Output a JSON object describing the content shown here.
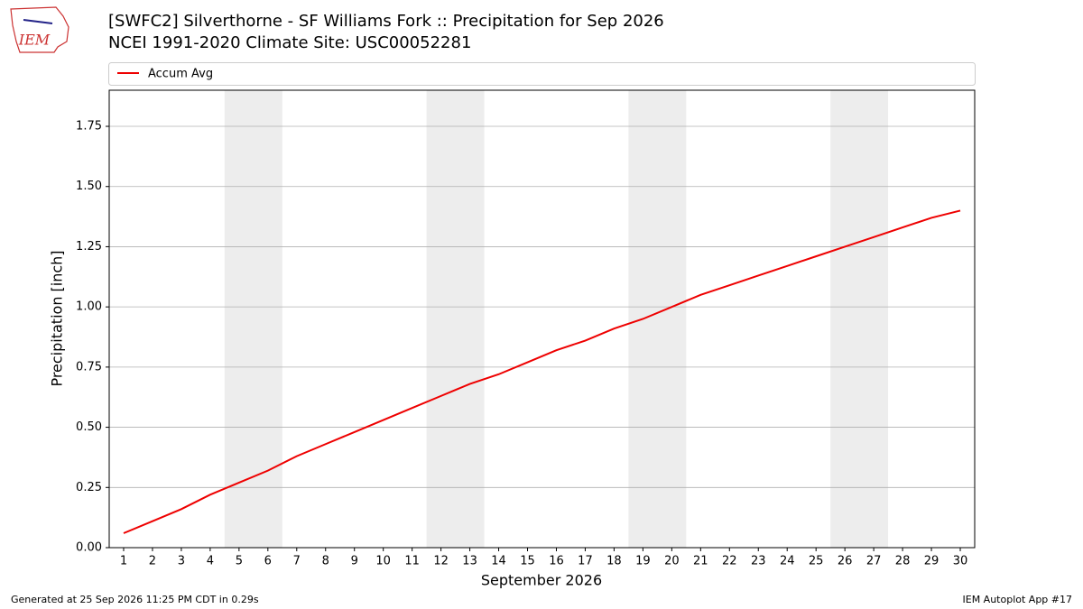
{
  "chart_data": {
    "type": "line",
    "title": "[SWFC2] Silverthorne - SF Williams Fork :: Precipitation for Sep 2026",
    "subtitle": "NCEI 1991-2020 Climate Site: USC00052281",
    "logo_text": "IEM",
    "x_label": "September 2026",
    "y_label": "Precipitation [inch]",
    "x": [
      1,
      2,
      3,
      4,
      5,
      6,
      7,
      8,
      9,
      10,
      11,
      12,
      13,
      14,
      15,
      16,
      17,
      18,
      19,
      20,
      21,
      22,
      23,
      24,
      25,
      26,
      27,
      28,
      29,
      30
    ],
    "series": [
      {
        "name": "Accum Avg",
        "color": "#ee0000",
        "values": [
          0.06,
          0.11,
          0.16,
          0.22,
          0.27,
          0.32,
          0.38,
          0.43,
          0.48,
          0.53,
          0.58,
          0.63,
          0.68,
          0.72,
          0.77,
          0.82,
          0.86,
          0.91,
          0.95,
          1.0,
          1.05,
          1.09,
          1.13,
          1.17,
          1.21,
          1.25,
          1.29,
          1.33,
          1.37,
          1.4
        ]
      }
    ],
    "weekend_shading": [
      [
        5,
        6
      ],
      [
        12,
        13
      ],
      [
        19,
        20
      ],
      [
        26,
        27
      ]
    ],
    "xlim": [
      0.5,
      30.5
    ],
    "ylim": [
      0,
      1.9
    ],
    "xticks": [
      1,
      2,
      3,
      4,
      5,
      6,
      7,
      8,
      9,
      10,
      11,
      12,
      13,
      14,
      15,
      16,
      17,
      18,
      19,
      20,
      21,
      22,
      23,
      24,
      25,
      26,
      27,
      28,
      29,
      30
    ],
    "yticks": [
      {
        "value": 0,
        "label": "0.00"
      },
      {
        "value": 0.25,
        "label": "0.25"
      },
      {
        "value": 0.5,
        "label": "0.50"
      },
      {
        "value": 0.75,
        "label": "0.75"
      },
      {
        "value": 1,
        "label": "1.00"
      },
      {
        "value": 1.25,
        "label": "1.25"
      },
      {
        "value": 1.5,
        "label": "1.50"
      },
      {
        "value": 1.75,
        "label": "1.75"
      }
    ],
    "grid": true,
    "legend_position": "top",
    "footer_left": "Generated at 25 Sep 2026 11:25 PM CDT in 0.29s",
    "footer_right": "IEM Autoplot App #17"
  }
}
